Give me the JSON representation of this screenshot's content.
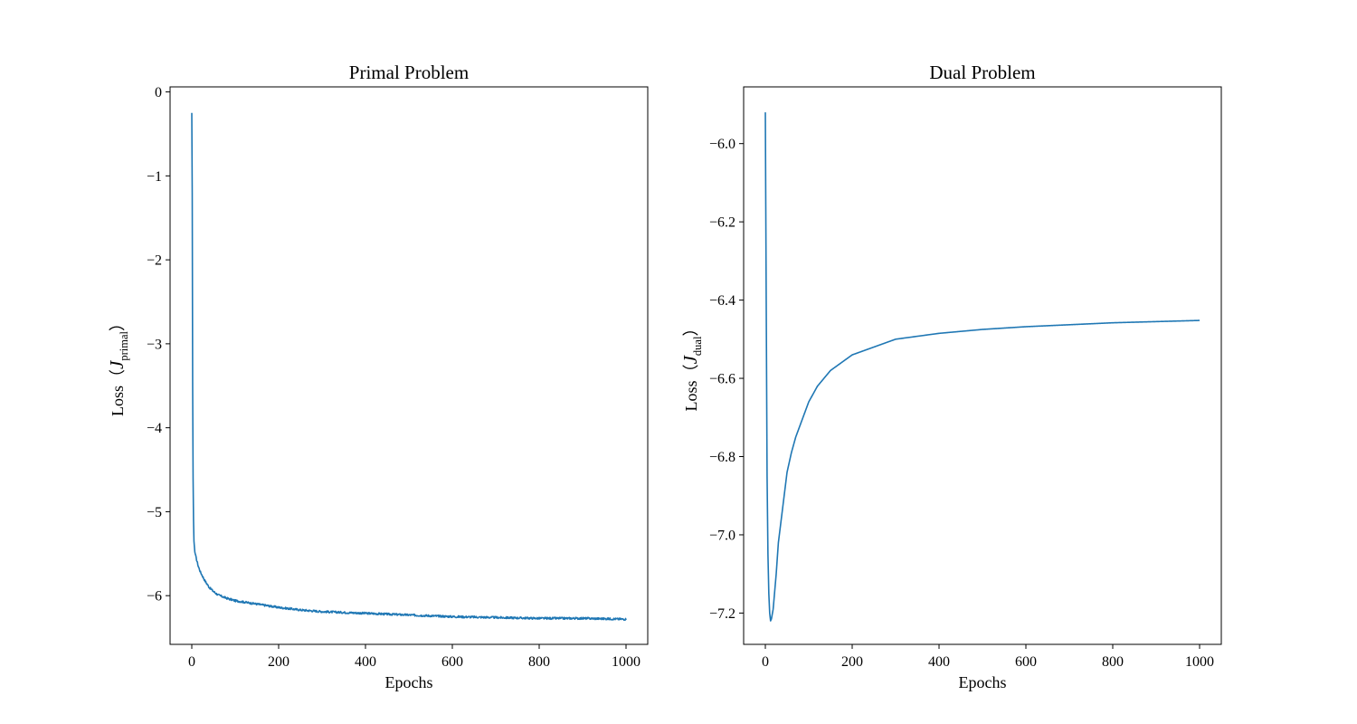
{
  "chart_data": [
    {
      "type": "line",
      "title": "Primal Problem",
      "xlabel": "Epochs",
      "ylabel": {
        "prefix": "Loss（",
        "symbol": "J",
        "subscript": "primal",
        "suffix": "）"
      },
      "xlim": [
        -50,
        1050
      ],
      "ylim": [
        -6.58,
        0.06
      ],
      "xticks": [
        0,
        200,
        400,
        600,
        800,
        1000
      ],
      "yticks": [
        0,
        -1,
        -2,
        -3,
        -4,
        -5,
        -6
      ],
      "xtick_labels": [
        "0",
        "200",
        "400",
        "600",
        "800",
        "1000"
      ],
      "ytick_labels": [
        "0",
        "−1",
        "−2",
        "−3",
        "−4",
        "−5",
        "−6"
      ],
      "grid": false,
      "noise": 0.012,
      "series": [
        {
          "color": "#1f77b4",
          "points": [
            [
              0,
              -0.25
            ],
            [
              1,
              -1.2
            ],
            [
              2,
              -3.5
            ],
            [
              3,
              -4.6
            ],
            [
              4,
              -5.1
            ],
            [
              5,
              -5.35
            ],
            [
              7,
              -5.48
            ],
            [
              10,
              -5.55
            ],
            [
              15,
              -5.65
            ],
            [
              20,
              -5.72
            ],
            [
              30,
              -5.82
            ],
            [
              40,
              -5.9
            ],
            [
              50,
              -5.95
            ],
            [
              60,
              -5.99
            ],
            [
              80,
              -6.03
            ],
            [
              100,
              -6.06
            ],
            [
              150,
              -6.1
            ],
            [
              200,
              -6.14
            ],
            [
              250,
              -6.17
            ],
            [
              300,
              -6.19
            ],
            [
              400,
              -6.21
            ],
            [
              500,
              -6.23
            ],
            [
              600,
              -6.25
            ],
            [
              700,
              -6.26
            ],
            [
              800,
              -6.27
            ],
            [
              900,
              -6.27
            ],
            [
              1000,
              -6.28
            ]
          ]
        }
      ]
    },
    {
      "type": "line",
      "title": "Dual Problem",
      "xlabel": "Epochs",
      "ylabel": {
        "prefix": "Loss（",
        "symbol": "J",
        "subscript": "dual",
        "suffix": "）"
      },
      "xlim": [
        -50,
        1050
      ],
      "ylim": [
        -7.28,
        -5.855
      ],
      "xticks": [
        0,
        200,
        400,
        600,
        800,
        1000
      ],
      "yticks": [
        -6.0,
        -6.2,
        -6.4,
        -6.6,
        -6.8,
        -7.0,
        -7.2
      ],
      "xtick_labels": [
        "0",
        "200",
        "400",
        "600",
        "800",
        "1000"
      ],
      "ytick_labels": [
        "−6.0",
        "−6.2",
        "−6.4",
        "−6.6",
        "−6.8",
        "−7.0",
        "−7.2"
      ],
      "grid": false,
      "noise": 0,
      "series": [
        {
          "color": "#1f77b4",
          "points": [
            [
              0,
              -5.92
            ],
            [
              2,
              -6.4
            ],
            [
              4,
              -6.85
            ],
            [
              6,
              -7.05
            ],
            [
              8,
              -7.15
            ],
            [
              10,
              -7.2
            ],
            [
              12,
              -7.22
            ],
            [
              14,
              -7.215
            ],
            [
              18,
              -7.19
            ],
            [
              25,
              -7.1
            ],
            [
              30,
              -7.02
            ],
            [
              40,
              -6.93
            ],
            [
              50,
              -6.84
            ],
            [
              60,
              -6.79
            ],
            [
              70,
              -6.75
            ],
            [
              80,
              -6.72
            ],
            [
              100,
              -6.66
            ],
            [
              120,
              -6.62
            ],
            [
              150,
              -6.58
            ],
            [
              200,
              -6.54
            ],
            [
              250,
              -6.52
            ],
            [
              300,
              -6.5
            ],
            [
              400,
              -6.485
            ],
            [
              500,
              -6.475
            ],
            [
              600,
              -6.468
            ],
            [
              700,
              -6.463
            ],
            [
              800,
              -6.458
            ],
            [
              900,
              -6.455
            ],
            [
              1000,
              -6.452
            ]
          ]
        }
      ]
    }
  ]
}
